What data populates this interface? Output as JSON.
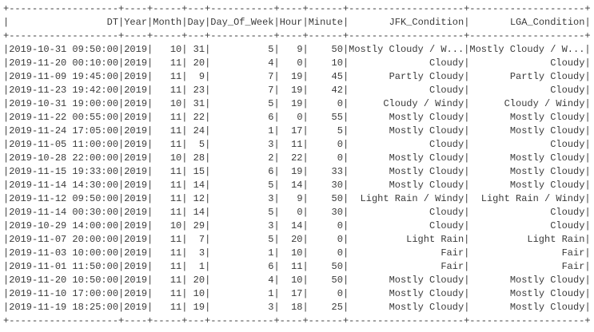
{
  "table": {
    "header": [
      "DT",
      "Year",
      "Month",
      "Day",
      "Day_Of_Week",
      "Hour",
      "Minute",
      "JFK_Condition",
      "LGA_Condition"
    ],
    "rows": [
      [
        "2019-10-31 09:50:00",
        2019,
        10,
        31,
        5,
        9,
        50,
        "Mostly Cloudy / W...",
        "Mostly Cloudy / W..."
      ],
      [
        "2019-11-20 00:10:00",
        2019,
        11,
        20,
        4,
        0,
        10,
        "Cloudy",
        "Cloudy"
      ],
      [
        "2019-11-09 19:45:00",
        2019,
        11,
        9,
        7,
        19,
        45,
        "Partly Cloudy",
        "Partly Cloudy"
      ],
      [
        "2019-11-23 19:42:00",
        2019,
        11,
        23,
        7,
        19,
        42,
        "Cloudy",
        "Cloudy"
      ],
      [
        "2019-10-31 19:00:00",
        2019,
        10,
        31,
        5,
        19,
        0,
        "Cloudy / Windy",
        "Cloudy / Windy"
      ],
      [
        "2019-11-22 00:55:00",
        2019,
        11,
        22,
        6,
        0,
        55,
        "Mostly Cloudy",
        "Mostly Cloudy"
      ],
      [
        "2019-11-24 17:05:00",
        2019,
        11,
        24,
        1,
        17,
        5,
        "Mostly Cloudy",
        "Mostly Cloudy"
      ],
      [
        "2019-11-05 11:00:00",
        2019,
        11,
        5,
        3,
        11,
        0,
        "Cloudy",
        "Cloudy"
      ],
      [
        "2019-10-28 22:00:00",
        2019,
        10,
        28,
        2,
        22,
        0,
        "Mostly Cloudy",
        "Mostly Cloudy"
      ],
      [
        "2019-11-15 19:33:00",
        2019,
        11,
        15,
        6,
        19,
        33,
        "Mostly Cloudy",
        "Mostly Cloudy"
      ],
      [
        "2019-11-14 14:30:00",
        2019,
        11,
        14,
        5,
        14,
        30,
        "Mostly Cloudy",
        "Mostly Cloudy"
      ],
      [
        "2019-11-12 09:50:00",
        2019,
        11,
        12,
        3,
        9,
        50,
        "Light Rain / Windy",
        "Light Rain / Windy"
      ],
      [
        "2019-11-14 00:30:00",
        2019,
        11,
        14,
        5,
        0,
        30,
        "Cloudy",
        "Cloudy"
      ],
      [
        "2019-10-29 14:00:00",
        2019,
        10,
        29,
        3,
        14,
        0,
        "Cloudy",
        "Cloudy"
      ],
      [
        "2019-11-07 20:00:00",
        2019,
        11,
        7,
        5,
        20,
        0,
        "Light Rain",
        "Light Rain"
      ],
      [
        "2019-11-03 10:00:00",
        2019,
        11,
        3,
        1,
        10,
        0,
        "Fair",
        "Fair"
      ],
      [
        "2019-11-01 11:50:00",
        2019,
        11,
        1,
        6,
        11,
        50,
        "Fair",
        "Fair"
      ],
      [
        "2019-11-20 10:50:00",
        2019,
        11,
        20,
        4,
        10,
        50,
        "Mostly Cloudy",
        "Mostly Cloudy"
      ],
      [
        "2019-11-10 17:00:00",
        2019,
        11,
        10,
        1,
        17,
        0,
        "Mostly Cloudy",
        "Mostly Cloudy"
      ],
      [
        "2019-11-19 18:25:00",
        2019,
        11,
        19,
        3,
        18,
        25,
        "Mostly Cloudy",
        "Mostly Cloudy"
      ]
    ]
  }
}
